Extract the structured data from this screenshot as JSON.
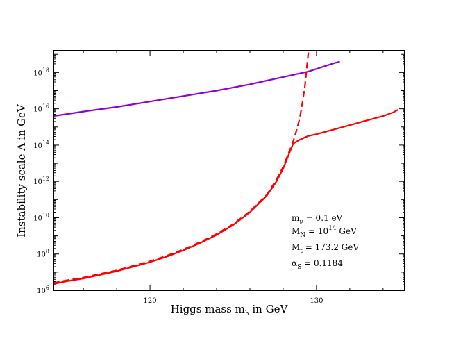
{
  "chart_data": {
    "type": "line",
    "title": "",
    "xlabel": {
      "main": "Higgs mass m",
      "sub": "h",
      "tail": " in GeV"
    },
    "ylabel": "Instability scale Λ in GeV",
    "xlim": [
      114.2,
      135.3
    ],
    "ylim_log10": [
      6,
      19.2
    ],
    "x_ticks": [
      120,
      130
    ],
    "y_ticks": [
      {
        "exp": 6,
        "base": "10",
        "power": "6"
      },
      {
        "exp": 8,
        "base": "10",
        "power": "8"
      },
      {
        "exp": 10,
        "base": "10",
        "power": "10"
      },
      {
        "exp": 12,
        "base": "10",
        "power": "12"
      },
      {
        "exp": 14,
        "base": "10",
        "power": "14"
      },
      {
        "exp": 16,
        "base": "10",
        "power": "16"
      },
      {
        "exp": 18,
        "base": "10",
        "power": "18"
      }
    ],
    "series": [
      {
        "name": "purple",
        "color": "#8f00d6",
        "style": "solid",
        "points": [
          [
            114.2,
            15.6
          ],
          [
            116,
            15.85
          ],
          [
            118,
            16.1
          ],
          [
            120,
            16.4
          ],
          [
            122,
            16.7
          ],
          [
            124,
            17.0
          ],
          [
            126,
            17.35
          ],
          [
            128,
            17.75
          ],
          [
            129.5,
            18.05
          ],
          [
            131,
            18.5
          ],
          [
            131.4,
            18.6
          ]
        ]
      },
      {
        "name": "red-solid",
        "color": "#ff0000",
        "style": "solid",
        "points": [
          [
            114.2,
            6.35
          ],
          [
            115,
            6.5
          ],
          [
            116,
            6.65
          ],
          [
            117,
            6.85
          ],
          [
            118,
            7.05
          ],
          [
            119,
            7.3
          ],
          [
            120,
            7.55
          ],
          [
            121,
            7.85
          ],
          [
            122,
            8.2
          ],
          [
            123,
            8.6
          ],
          [
            124,
            9.05
          ],
          [
            125,
            9.6
          ],
          [
            126,
            10.3
          ],
          [
            127,
            11.2
          ],
          [
            127.6,
            12.0
          ],
          [
            128,
            12.7
          ],
          [
            128.3,
            13.4
          ],
          [
            128.6,
            14.08
          ],
          [
            129,
            14.3
          ],
          [
            129.5,
            14.5
          ],
          [
            130,
            14.6
          ],
          [
            131,
            14.85
          ],
          [
            132,
            15.1
          ],
          [
            133,
            15.35
          ],
          [
            134,
            15.6
          ],
          [
            134.6,
            15.8
          ],
          [
            134.9,
            15.95
          ]
        ]
      },
      {
        "name": "red-dashed",
        "color": "#ff0000",
        "style": "dashed",
        "points": [
          [
            114.2,
            6.4
          ],
          [
            115,
            6.55
          ],
          [
            116,
            6.7
          ],
          [
            117,
            6.9
          ],
          [
            118,
            7.1
          ],
          [
            119,
            7.35
          ],
          [
            120,
            7.6
          ],
          [
            121,
            7.9
          ],
          [
            122,
            8.25
          ],
          [
            123,
            8.65
          ],
          [
            124,
            9.1
          ],
          [
            125,
            9.65
          ],
          [
            126,
            10.35
          ],
          [
            127,
            11.25
          ],
          [
            127.6,
            12.1
          ],
          [
            128,
            12.8
          ],
          [
            128.3,
            13.5
          ],
          [
            128.6,
            14.2
          ],
          [
            128.8,
            14.8
          ],
          [
            129,
            15.5
          ],
          [
            129.15,
            16.3
          ],
          [
            129.3,
            17.2
          ],
          [
            129.4,
            18.1
          ],
          [
            129.5,
            19.0
          ],
          [
            129.55,
            19.2
          ]
        ]
      }
    ],
    "annotations": [
      {
        "id": "mnu",
        "main": "m",
        "sub": "ν",
        "sup": "",
        "tail": " = 0.1  eV"
      },
      {
        "id": "mN",
        "main": "M",
        "sub": "N",
        "sup": "14",
        "tail_pre": " = 10",
        "tail": " GeV"
      },
      {
        "id": "mt",
        "main": "M",
        "sub": "t",
        "sup": "",
        "tail": " = 173.2 GeV"
      },
      {
        "id": "alpha",
        "main": "α",
        "sub": "S",
        "sup": "",
        "tail": " = 0.1184"
      }
    ]
  }
}
